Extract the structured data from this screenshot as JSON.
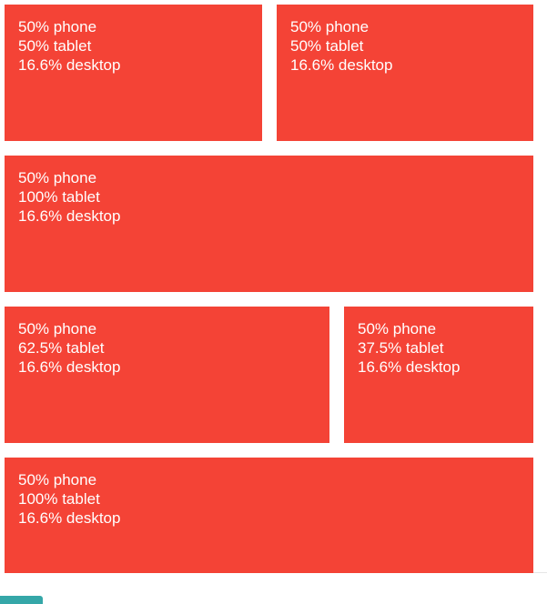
{
  "grid": {
    "cells": [
      {
        "phone": "50% phone",
        "tablet": "50% tablet",
        "desktop": "16.6% desktop"
      },
      {
        "phone": "50% phone",
        "tablet": "50% tablet",
        "desktop": "16.6% desktop"
      },
      {
        "phone": "50% phone",
        "tablet": "100% tablet",
        "desktop": "16.6% desktop"
      },
      {
        "phone": "50% phone",
        "tablet": "62.5% tablet",
        "desktop": "16.6% desktop"
      },
      {
        "phone": "50% phone",
        "tablet": "37.5% tablet",
        "desktop": "16.6% desktop"
      },
      {
        "phone": "50% phone",
        "tablet": "100% tablet",
        "desktop": "16.6% desktop"
      }
    ]
  },
  "colors": {
    "cell_background": "#f44336",
    "cell_text": "#ffffff",
    "corner_tab": "#35a7a8"
  }
}
